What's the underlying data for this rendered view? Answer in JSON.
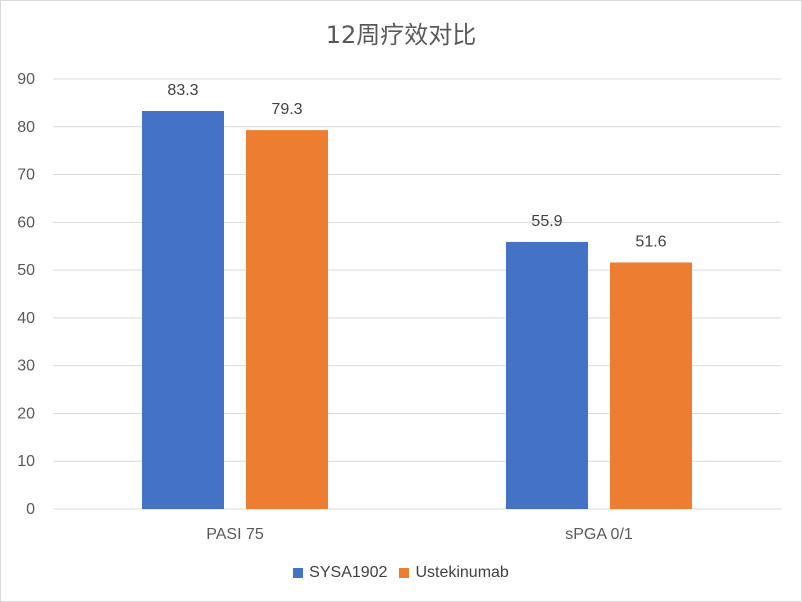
{
  "chart_data": {
    "type": "bar",
    "title": "12周疗效对比",
    "categories": [
      "PASI 75",
      "sPGA 0/1"
    ],
    "series": [
      {
        "name": "SYSA1902",
        "values": [
          83.3,
          55.9
        ],
        "color": "#4472c4"
      },
      {
        "name": "Ustekinumab",
        "values": [
          79.3,
          51.6
        ],
        "color": "#ed7d31"
      }
    ],
    "xlabel": "",
    "ylabel": "",
    "ylim": [
      0,
      90
    ],
    "yticks": [
      0,
      10,
      20,
      30,
      40,
      50,
      60,
      70,
      80,
      90
    ],
    "grid": true,
    "legend": "bottom",
    "data_labels": true
  }
}
